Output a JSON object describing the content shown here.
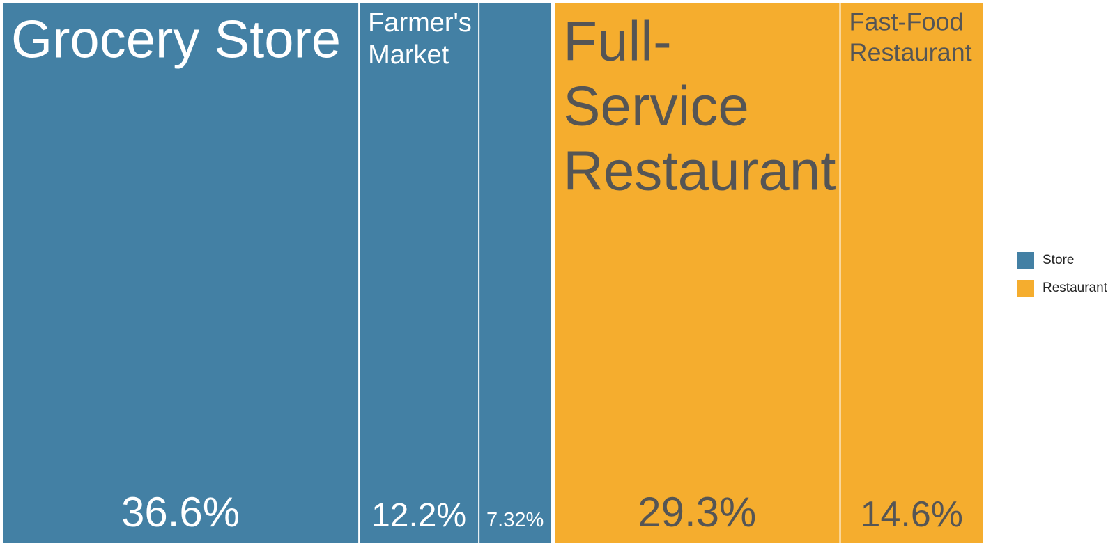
{
  "chart_data": {
    "type": "treemap",
    "title": "",
    "groups": [
      {
        "name": "Store",
        "color": "#4380A4",
        "items": [
          {
            "label": "Grocery Store",
            "value": 36.6,
            "value_label": "36.6%"
          },
          {
            "label": "Farmer's Market",
            "value": 12.2,
            "value_label": "12.2%"
          },
          {
            "label": "",
            "value": 7.32,
            "value_label": "7.32%"
          }
        ]
      },
      {
        "name": "Restaurant",
        "color": "#F5AD2E",
        "items": [
          {
            "label": "Full-Service Restaurant",
            "value": 29.3,
            "value_label": "29.3%"
          },
          {
            "label": "Fast-Food Restaurant",
            "value": 14.6,
            "value_label": "14.6%"
          }
        ]
      }
    ],
    "legend": {
      "placement": "right",
      "entries": [
        {
          "name": "Store",
          "color": "#4380A4"
        },
        {
          "name": "Restaurant",
          "color": "#F5AD2E"
        }
      ]
    }
  }
}
